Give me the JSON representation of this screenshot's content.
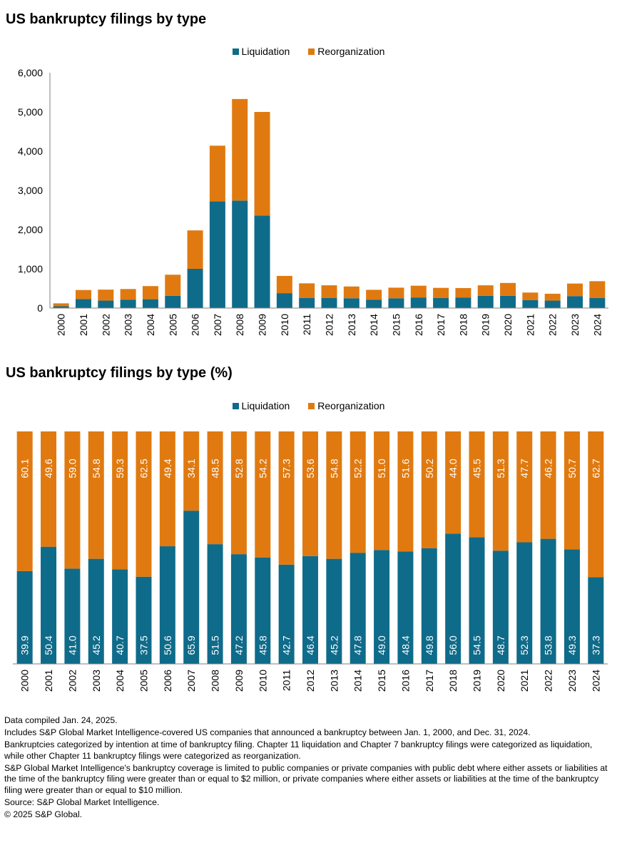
{
  "charts_text": {
    "title1": "US bankruptcy filings by type",
    "title2": "US bankruptcy filings by type (%)"
  },
  "legend": {
    "liquidation": "Liquidation",
    "reorganization": "Reorganization"
  },
  "colors": {
    "liquidation": "#0f6b8a",
    "reorganization": "#e07a10",
    "axis": "#7f7f7f",
    "text": "#000000",
    "bar_label": "#ffffff"
  },
  "chart_data": [
    {
      "type": "bar",
      "stacked": true,
      "title": "US bankruptcy filings by type",
      "categories": [
        "2000",
        "2001",
        "2002",
        "2003",
        "2004",
        "2005",
        "2006",
        "2007",
        "2008",
        "2009",
        "2010",
        "2011",
        "2012",
        "2013",
        "2014",
        "2015",
        "2016",
        "2017",
        "2018",
        "2019",
        "2020",
        "2021",
        "2022",
        "2023",
        "2024"
      ],
      "series": [
        {
          "name": "Liquidation",
          "values": [
            45,
            230,
            190,
            215,
            225,
            310,
            1000,
            2720,
            2740,
            2360,
            380,
            260,
            260,
            250,
            215,
            250,
            270,
            255,
            270,
            310,
            310,
            205,
            190,
            305,
            255
          ]
        },
        {
          "name": "Reorganization",
          "values": [
            75,
            230,
            280,
            270,
            335,
            540,
            980,
            1420,
            2590,
            2640,
            440,
            370,
            320,
            300,
            250,
            270,
            300,
            260,
            240,
            270,
            330,
            190,
            175,
            320,
            430
          ]
        }
      ],
      "ylim": [
        0,
        6000
      ],
      "yticks": [
        "0",
        "1,000",
        "2,000",
        "3,000",
        "4,000",
        "5,000",
        "6,000"
      ],
      "legend": "top-center",
      "grid": false
    },
    {
      "type": "bar",
      "stacked": true,
      "percent": true,
      "title": "US bankruptcy filings by type (%)",
      "categories": [
        "2000",
        "2001",
        "2002",
        "2003",
        "2004",
        "2005",
        "2006",
        "2007",
        "2008",
        "2009",
        "2010",
        "2011",
        "2012",
        "2013",
        "2014",
        "2015",
        "2016",
        "2017",
        "2018",
        "2019",
        "2020",
        "2021",
        "2022",
        "2023",
        "2024"
      ],
      "series": [
        {
          "name": "Liquidation",
          "values": [
            39.9,
            50.4,
            41.0,
            45.2,
            40.7,
            37.5,
            50.6,
            65.9,
            51.5,
            47.2,
            45.8,
            42.7,
            46.4,
            45.2,
            47.8,
            49.0,
            48.4,
            49.8,
            56.0,
            54.5,
            48.7,
            52.3,
            53.8,
            49.3,
            37.3
          ]
        },
        {
          "name": "Reorganization",
          "values": [
            60.1,
            49.6,
            59.0,
            54.8,
            59.3,
            62.5,
            49.4,
            34.1,
            48.5,
            52.8,
            54.2,
            57.3,
            53.6,
            54.8,
            52.2,
            51.0,
            51.6,
            50.2,
            44.0,
            45.5,
            51.3,
            47.7,
            46.2,
            50.7,
            62.7
          ]
        }
      ],
      "ylim": [
        0,
        100
      ],
      "legend": "top-center",
      "grid": false
    }
  ],
  "notes": [
    "Data compiled Jan. 24, 2025.",
    "Includes S&P Global Market Intelligence-covered US companies that announced a bankruptcy between Jan. 1, 2000, and Dec. 31, 2024.",
    "Bankruptcies categorized by intention at time of bankruptcy filing. Chapter 11 liquidation and Chapter 7 bankruptcy filings were categorized as liquidation, while other Chapter 11 bankruptcy filings were categorized as reorganization.",
    "S&P Global Market Intelligence's bankruptcy coverage is limited to public companies or private companies with public debt where either assets or liabilities at the time of the bankruptcy filing were greater than or equal to $2 million, or private companies where either assets or liabilities at the time of the bankruptcy filing were greater than or equal to $10 million.",
    "Source: S&P Global Market Intelligence.",
    "© 2025 S&P Global."
  ]
}
